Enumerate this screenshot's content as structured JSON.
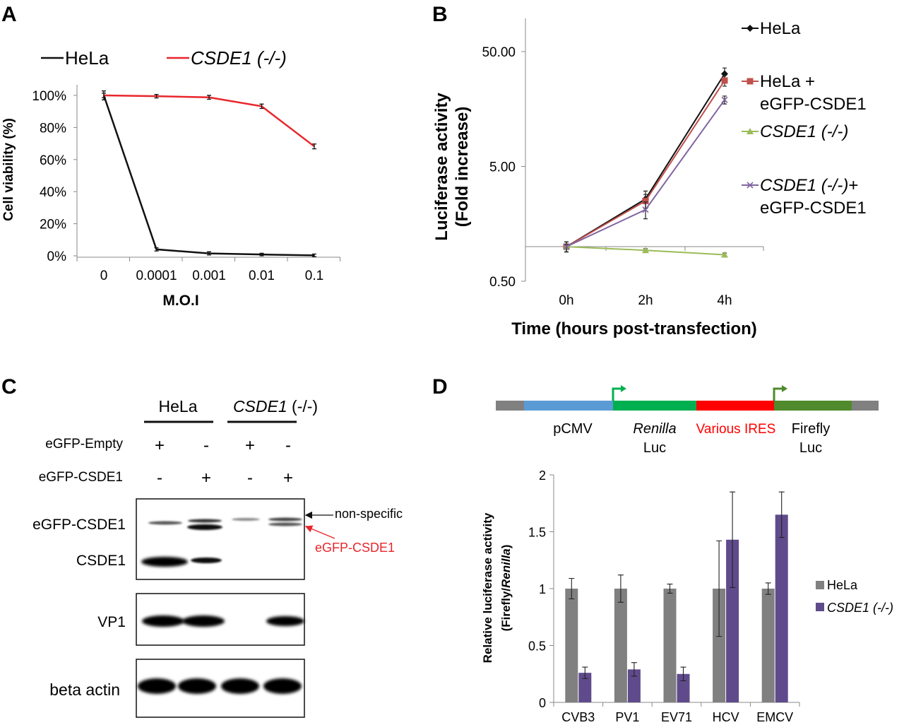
{
  "panels": {
    "A": {
      "letter": "A",
      "legend": [
        "HeLa",
        "CSDE1 (-/-)"
      ],
      "ylabel": "Cell viability (%)",
      "xlabel": "M.O.I",
      "yticks": [
        "0%",
        "20%",
        "40%",
        "60%",
        "80%",
        "100%"
      ],
      "xticks": [
        "0",
        "0.0001",
        "0.001",
        "0.01",
        "0.1"
      ]
    },
    "B": {
      "letter": "B",
      "ylabel_line1": "Luciferase activity",
      "ylabel_line2": "(Fold increase)",
      "xlabel": "Time (hours post-transfection)",
      "yticks": [
        "0.50",
        "5.00",
        "50.00"
      ],
      "xticks": [
        "0h",
        "2h",
        "4h"
      ],
      "legend": {
        "hela": "HeLa",
        "hela_gfp_1": "HeLa +",
        "hela_gfp_2": "eGFP-CSDE1",
        "ko": "CSDE1 (-/-)",
        "ko_gfp_1": "CSDE1 (-/-)",
        "ko_gfp_plus": "+",
        "ko_gfp_2": "eGFP-CSDE1"
      }
    },
    "C": {
      "letter": "C",
      "group_hela": "HeLa",
      "group_ko_gene": "CSDE1",
      "group_ko_suffix": " (-/-)",
      "row_empty": "eGFP-Empty",
      "row_csde1": "eGFP-CSDE1",
      "empty_signs": [
        "+",
        "-",
        "+",
        "-"
      ],
      "csde1_signs": [
        "-",
        "+",
        "-",
        "+"
      ],
      "blot_label_egfp": "eGFP-CSDE1",
      "blot_label_csde1": "CSDE1",
      "blot_label_vp1": "VP1",
      "blot_label_actin": "beta actin",
      "annot_nonspecific": "non-specific",
      "annot_egfp": "eGFP-CSDE1",
      "annot_egfp_color": "#e8262c"
    },
    "D": {
      "letter": "D",
      "construct": {
        "pcmv": "pCMV",
        "renilla_1": "Renilla",
        "renilla_2": "Luc",
        "ires": "Various IRES",
        "firefly_1": "Firefly",
        "firefly_2": "Luc",
        "colors": {
          "backbone": "#808080",
          "pcmv": "#5b9bd5",
          "renilla": "#00b050",
          "ires": "#ff0000",
          "firefly": "#4f8a2c",
          "ires_text": "#ff0000"
        }
      },
      "ylabel_line1": "Relative luciferase activity",
      "ylabel_line2_a": "(Firefly/",
      "ylabel_line2_b": "Renilla",
      "ylabel_line2_c": ")",
      "yticks": [
        "0",
        "0.5",
        "1",
        "1.5",
        "2"
      ],
      "legend": [
        "HeLa",
        "CSDE1 (-/-)"
      ]
    }
  },
  "chart_data": [
    {
      "panel": "A",
      "type": "line",
      "categories": [
        "0",
        "0.0001",
        "0.001",
        "0.01",
        "0.1"
      ],
      "xlabel": "M.O.I",
      "ylabel": "Cell viability (%)",
      "ylim": [
        0,
        100
      ],
      "series": [
        {
          "name": "HeLa",
          "color": "#111111",
          "values": [
            100,
            4,
            1.5,
            0.8,
            0.3
          ],
          "errors": [
            3,
            0.5,
            0.5,
            0.2,
            0.2
          ]
        },
        {
          "name": "CSDE1 (-/-)",
          "color": "#e8262c",
          "values": [
            100,
            99.5,
            98.8,
            93.2,
            68.2
          ],
          "errors": [
            1,
            0.6,
            0.8,
            1,
            1.2
          ]
        }
      ]
    },
    {
      "panel": "B",
      "type": "line",
      "categories": [
        "0h",
        "2h",
        "4h"
      ],
      "xlabel": "Time (hours post-transfection)",
      "ylabel": "Luciferase activity (Fold increase)",
      "yscale": "log",
      "ylim": [
        0.5,
        175
      ],
      "series": [
        {
          "name": "HeLa",
          "color": "#111111",
          "marker": "diamond",
          "values": [
            1,
            2.6,
            32
          ],
          "errors": [
            0.1,
            0.45,
            4
          ]
        },
        {
          "name": "HeLa + eGFP-CSDE1",
          "color": "#c0504d",
          "marker": "square",
          "values": [
            1,
            2.5,
            28
          ],
          "errors": [
            0.1,
            0.35,
            3
          ]
        },
        {
          "name": "CSDE1 (-/-)",
          "color": "#9bbb59",
          "marker": "triangle",
          "values": [
            1,
            0.93,
            0.85
          ],
          "errors": [
            0.05,
            0.03,
            0.03
          ]
        },
        {
          "name": "CSDE1 (-/-)+ eGFP-CSDE1",
          "color": "#8064a2",
          "marker": "x",
          "values": [
            1,
            2.1,
            19
          ],
          "errors": [
            0.1,
            0.35,
            1.5
          ]
        }
      ]
    },
    {
      "panel": "D",
      "type": "bar",
      "categories": [
        "CVB3",
        "PV1",
        "EV71",
        "HCV",
        "EMCV"
      ],
      "ylabel": "Relative luciferase activity (Firefly/Renilla)",
      "ylim": [
        0,
        2
      ],
      "series": [
        {
          "name": "HeLa",
          "color": "#808080",
          "values": [
            1,
            1,
            1,
            1,
            1
          ],
          "errors": [
            0.09,
            0.12,
            0.04,
            0.42,
            0.05
          ]
        },
        {
          "name": "CSDE1 (-/-)",
          "color": "#5f4b8b",
          "values": [
            0.26,
            0.29,
            0.25,
            1.43,
            1.65
          ],
          "errors": [
            0.05,
            0.06,
            0.06,
            0.42,
            0.2
          ]
        }
      ]
    }
  ]
}
